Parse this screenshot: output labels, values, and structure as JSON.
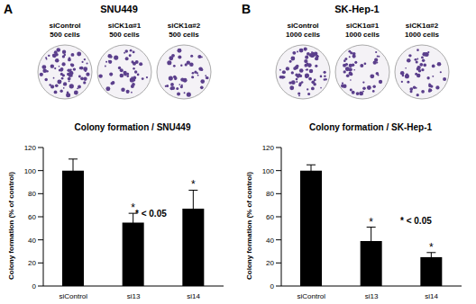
{
  "panels": [
    {
      "label": "A",
      "cell_line": "SNU449",
      "plates": [
        {
          "label": "siControl",
          "cells": "500 cells"
        },
        {
          "label": "siCK1α#1",
          "cells": "500 cells"
        },
        {
          "label": "siCK1α#2",
          "cells": "500 cells"
        }
      ]
    },
    {
      "label": "B",
      "cell_line": "SK-Hep-1",
      "plates": [
        {
          "label": "siControl",
          "cells": "1000 cells"
        },
        {
          "label": "siCK1α#1",
          "cells": "1000 cells"
        },
        {
          "label": "siCK1α#2",
          "cells": "1000 cells"
        }
      ]
    }
  ],
  "chart_data": [
    {
      "type": "bar",
      "title": "Colony formation / SNU449",
      "y_label": "Colony formation (% of control)",
      "categories": [
        "siControl",
        "si13",
        "si14"
      ],
      "values": [
        100,
        55,
        67
      ],
      "errors": [
        10,
        8,
        16
      ],
      "significance": [
        null,
        "*",
        "*"
      ],
      "annotation": "* < 0.05",
      "color": "#000000",
      "ylim": [
        0,
        120
      ],
      "yticks": [
        0,
        20,
        40,
        60,
        80,
        100,
        120
      ]
    },
    {
      "type": "bar",
      "title": "Colony formation / SK-Hep-1",
      "y_label": "Colony formation (% of control)",
      "categories": [
        "siControl",
        "si13",
        "si14"
      ],
      "values": [
        100,
        39,
        25
      ],
      "errors": [
        5,
        12,
        4
      ],
      "significance": [
        null,
        "*",
        "*"
      ],
      "annotation": "* < 0.05",
      "color": "#000000",
      "ylim": [
        0,
        120
      ],
      "yticks": [
        0,
        20,
        40,
        60,
        80,
        100,
        120
      ]
    }
  ]
}
